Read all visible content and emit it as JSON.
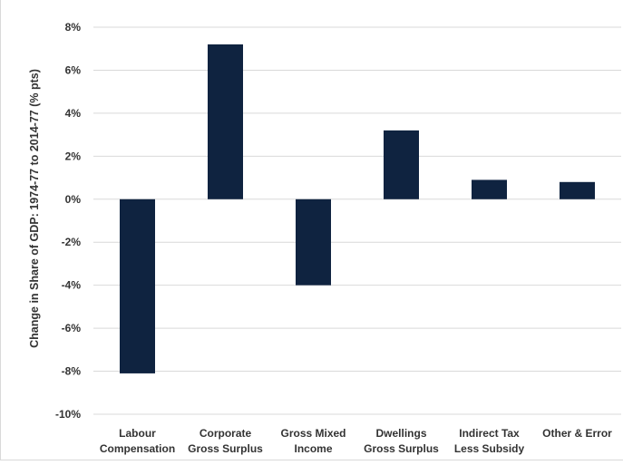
{
  "chart_data": {
    "type": "bar",
    "title": "",
    "xlabel": "",
    "ylabel": "Change in Share of GDP: 1974-77 to 2014-77 (% pts)",
    "categories": [
      [
        "Labour",
        "Compensation"
      ],
      [
        "Corporate",
        "Gross Surplus"
      ],
      [
        "Gross Mixed",
        "Income"
      ],
      [
        "Dwellings",
        "Gross Surplus"
      ],
      [
        "Indirect Tax",
        "Less Subsidy"
      ],
      [
        "Other & Error"
      ]
    ],
    "values": [
      -8.1,
      7.2,
      -4.0,
      3.2,
      0.9,
      0.8
    ],
    "ylim": [
      -10,
      8
    ],
    "yticks": [
      8,
      6,
      4,
      2,
      0,
      -2,
      -4,
      -6,
      -8,
      -10
    ],
    "ytick_labels": [
      "8%",
      "6%",
      "4%",
      "2%",
      "0%",
      "-2%",
      "-4%",
      "-6%",
      "-8%",
      "-10%"
    ],
    "grid": true,
    "legend": "none",
    "bar_color": "#0f2340",
    "grid_color": "#d9d9d9"
  }
}
